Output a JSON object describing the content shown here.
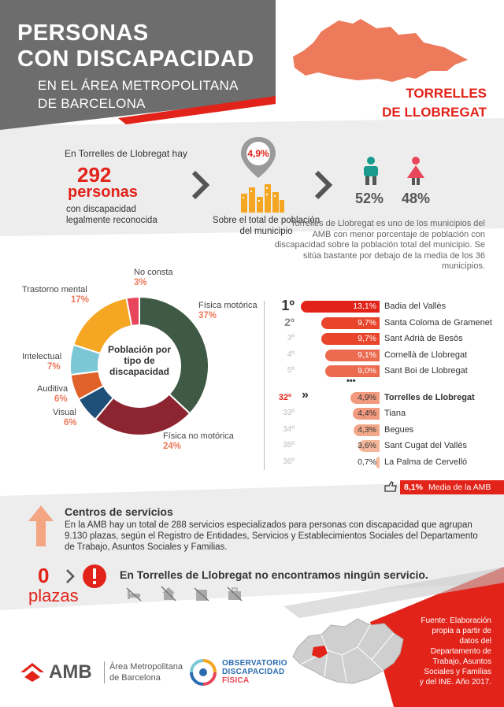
{
  "header": {
    "title_line1": "PERSONAS",
    "title_line2": "CON DISCAPACIDAD",
    "subtitle_line1": "EN EL ÁREA METROPOLITANA",
    "subtitle_line2": "DE BARCELONA",
    "municipality_line1": "TORRELLES",
    "municipality_line2": "DE LLOBREGAT"
  },
  "stats": {
    "intro": "En Torrelles de Llobregat hay",
    "count": "292",
    "count_unit": "personas",
    "count_desc": "con discapacidad legalmente reconocida",
    "percent": "4,9%",
    "percent_caption": "Sobre el total de población del municipio",
    "male_pct": "52%",
    "female_pct": "48%"
  },
  "note": "Torrelles de Llobregat es uno de los municipios del AMB con menor porcentaje de población con discapacidad sobre la población total del municipio. Se sitúa bastante por debajo de la media de los 36 municipios.",
  "donut": {
    "center_label": "Población por tipo de discapacidad",
    "segments": [
      {
        "label": "Física motórica",
        "value": "37%",
        "pct": 37,
        "color": "#3e5a45"
      },
      {
        "label": "Física no motórica",
        "value": "24%",
        "pct": 24,
        "color": "#8c2530"
      },
      {
        "label": "Visual",
        "value": "6%",
        "pct": 6,
        "color": "#1f4f78"
      },
      {
        "label": "Auditiva",
        "value": "6%",
        "pct": 6,
        "color": "#e0622a"
      },
      {
        "label": "Intelectual",
        "value": "7%",
        "pct": 7,
        "color": "#7cc7d6"
      },
      {
        "label": "Trastorno mental",
        "value": "17%",
        "pct": 17,
        "color": "#f5a623"
      },
      {
        "label": "No consta",
        "value": "3%",
        "pct": 3,
        "color": "#e8465a"
      }
    ]
  },
  "ranking": {
    "top": [
      {
        "pos": "1º",
        "value": "13,1%",
        "pct": 13.1,
        "name": "Badia del Vallès"
      },
      {
        "pos": "2º",
        "value": "9,7%",
        "pct": 9.7,
        "name": "Santa Coloma de Gramenet"
      },
      {
        "pos": "3º",
        "value": "9,7%",
        "pct": 9.7,
        "name": "Sant Adrià de Besòs"
      },
      {
        "pos": "4º",
        "value": "9,1%",
        "pct": 9.1,
        "name": "Cornellà de Llobregat"
      },
      {
        "pos": "5º",
        "value": "9,0%",
        "pct": 9.0,
        "name": "Sant Boi de Llobregat"
      }
    ],
    "dots": "•••",
    "current": {
      "pos": "32º",
      "value": "4,9%",
      "pct": 4.9,
      "name": "Torrelles de Llobregat"
    },
    "bottom": [
      {
        "pos": "33º",
        "value": "4,4%",
        "pct": 4.4,
        "name": "Tiana"
      },
      {
        "pos": "34º",
        "value": "4,3%",
        "pct": 4.3,
        "name": "Begues"
      },
      {
        "pos": "35º",
        "value": "3,6%",
        "pct": 3.6,
        "name": "Sant Cugat del Vallès"
      },
      {
        "pos": "36º",
        "value": "0,7%",
        "pct": 0.7,
        "name": "La Palma de Cervelló"
      }
    ],
    "average_value": "8,1%",
    "average_label": "Media de la AMB"
  },
  "services": {
    "title": "Centros de servicios",
    "text": "En la AMB hay un total de 288 servicios especializados para personas con discapacidad que agrupan 9.130 plazas, según el Registro de Entidades, Servicios y Establecimientos Sociales del Departamento de Trabajo, Asuntos Sociales y Familias.",
    "zero": "0",
    "zero_label": "plazas",
    "none_text": "En Torrelles de Llobregat no encontramos ningún servicio."
  },
  "source": "Fuente: Elaboración propia a partir de datos del Departamento de Trabajo, Asuntos Sociales y Familias y del INE. Año 2017.",
  "footer": {
    "amb": "AMB",
    "amb_full_line1": "Àrea Metropolitana",
    "amb_full_line2": "de Barcelona",
    "obs_line1": "OBSERVATORIO",
    "obs_line2": "DISCAPACIDAD",
    "obs_line3": "FÍSICA"
  },
  "colors": {
    "accent": "#e2231a",
    "salmon": "#ec7a5b",
    "header_gray": "#6d6d6d"
  }
}
